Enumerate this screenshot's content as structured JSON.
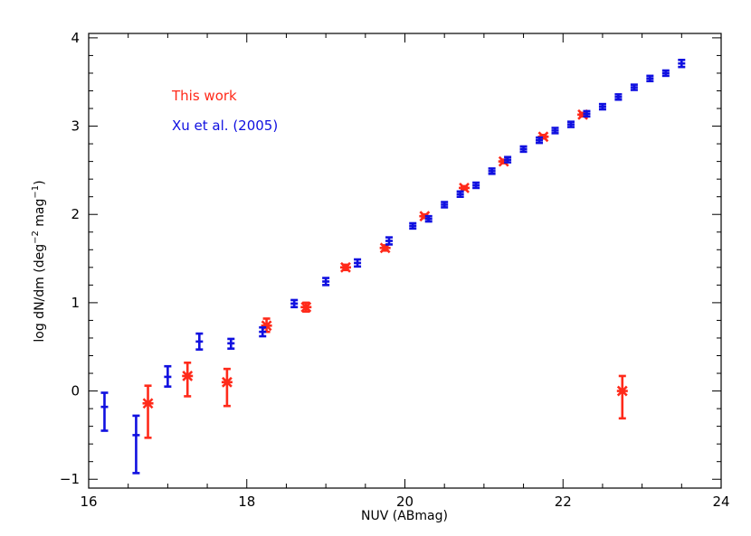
{
  "chart_data": {
    "type": "scatter",
    "xlabel": "NUV (ABmag)",
    "ylabel_main": "log dN/dm (deg",
    "ylabel_sup1": "−2",
    "ylabel_mid": " mag",
    "ylabel_sup2": "−1",
    "ylabel_end": ")",
    "xlim": [
      16,
      24
    ],
    "ylim": [
      -1.1,
      4.05
    ],
    "xticks": [
      16,
      18,
      20,
      22,
      24
    ],
    "xtick_labels": [
      "16",
      "18",
      "20",
      "22",
      "24"
    ],
    "yticks": [
      -1,
      0,
      1,
      2,
      3,
      4
    ],
    "ytick_labels": [
      "−1",
      "0",
      "1",
      "2",
      "3",
      "4"
    ],
    "legend": [
      {
        "label": "This work",
        "color": "#ff2a1a"
      },
      {
        "label": "Xu et al. (2005)",
        "color": "#1010e0"
      }
    ],
    "series": [
      {
        "name": "This work",
        "color": "#ff2a1a",
        "marker": "asterisk",
        "points": [
          {
            "x": 16.75,
            "y": -0.14,
            "lo": -0.53,
            "hi": 0.06
          },
          {
            "x": 17.25,
            "y": 0.17,
            "lo": -0.06,
            "hi": 0.32
          },
          {
            "x": 17.75,
            "y": 0.1,
            "lo": -0.17,
            "hi": 0.25
          },
          {
            "x": 18.25,
            "y": 0.74,
            "lo": 0.67,
            "hi": 0.82
          },
          {
            "x": 18.75,
            "y": 0.95,
            "lo": 0.9,
            "hi": 1.0
          },
          {
            "x": 19.25,
            "y": 1.4,
            "lo": 1.37,
            "hi": 1.43
          },
          {
            "x": 19.75,
            "y": 1.62,
            "lo": 1.59,
            "hi": 1.65
          },
          {
            "x": 20.25,
            "y": 1.98,
            "lo": 1.96,
            "hi": 2.0
          },
          {
            "x": 20.75,
            "y": 2.3,
            "lo": 2.28,
            "hi": 2.32
          },
          {
            "x": 21.25,
            "y": 2.6,
            "lo": 2.58,
            "hi": 2.62
          },
          {
            "x": 21.75,
            "y": 2.88,
            "lo": 2.86,
            "hi": 2.9
          },
          {
            "x": 22.25,
            "y": 3.13,
            "lo": 3.11,
            "hi": 3.15
          },
          {
            "x": 22.75,
            "y": 0.0,
            "lo": -0.31,
            "hi": 0.17
          }
        ]
      },
      {
        "name": "Xu et al. (2005)",
        "color": "#1010e0",
        "marker": "errorbar",
        "points": [
          {
            "x": 16.2,
            "y": -0.18,
            "lo": -0.45,
            "hi": -0.02
          },
          {
            "x": 16.6,
            "y": -0.5,
            "lo": -0.93,
            "hi": -0.28
          },
          {
            "x": 17.0,
            "y": 0.16,
            "lo": 0.05,
            "hi": 0.28
          },
          {
            "x": 17.4,
            "y": 0.56,
            "lo": 0.47,
            "hi": 0.65
          },
          {
            "x": 17.8,
            "y": 0.54,
            "lo": 0.48,
            "hi": 0.59
          },
          {
            "x": 18.2,
            "y": 0.67,
            "lo": 0.62,
            "hi": 0.72
          },
          {
            "x": 18.6,
            "y": 0.99,
            "lo": 0.95,
            "hi": 1.03
          },
          {
            "x": 19.0,
            "y": 1.24,
            "lo": 1.2,
            "hi": 1.28
          },
          {
            "x": 19.4,
            "y": 1.45,
            "lo": 1.41,
            "hi": 1.49
          },
          {
            "x": 19.8,
            "y": 1.7,
            "lo": 1.66,
            "hi": 1.74
          },
          {
            "x": 20.1,
            "y": 1.87,
            "lo": 1.84,
            "hi": 1.9
          },
          {
            "x": 20.3,
            "y": 1.95,
            "lo": 1.92,
            "hi": 1.98
          },
          {
            "x": 20.5,
            "y": 2.11,
            "lo": 2.08,
            "hi": 2.14
          },
          {
            "x": 20.7,
            "y": 2.23,
            "lo": 2.2,
            "hi": 2.26
          },
          {
            "x": 20.9,
            "y": 2.33,
            "lo": 2.3,
            "hi": 2.36
          },
          {
            "x": 21.1,
            "y": 2.49,
            "lo": 2.46,
            "hi": 2.52
          },
          {
            "x": 21.3,
            "y": 2.62,
            "lo": 2.59,
            "hi": 2.65
          },
          {
            "x": 21.5,
            "y": 2.74,
            "lo": 2.71,
            "hi": 2.77
          },
          {
            "x": 21.7,
            "y": 2.84,
            "lo": 2.81,
            "hi": 2.87
          },
          {
            "x": 21.9,
            "y": 2.95,
            "lo": 2.92,
            "hi": 2.98
          },
          {
            "x": 22.1,
            "y": 3.02,
            "lo": 2.99,
            "hi": 3.05
          },
          {
            "x": 22.3,
            "y": 3.14,
            "lo": 3.11,
            "hi": 3.17
          },
          {
            "x": 22.5,
            "y": 3.22,
            "lo": 3.19,
            "hi": 3.25
          },
          {
            "x": 22.7,
            "y": 3.33,
            "lo": 3.3,
            "hi": 3.36
          },
          {
            "x": 22.9,
            "y": 3.44,
            "lo": 3.41,
            "hi": 3.47
          },
          {
            "x": 23.1,
            "y": 3.54,
            "lo": 3.51,
            "hi": 3.57
          },
          {
            "x": 23.3,
            "y": 3.6,
            "lo": 3.57,
            "hi": 3.63
          },
          {
            "x": 23.5,
            "y": 3.71,
            "lo": 3.67,
            "hi": 3.75
          }
        ]
      }
    ]
  }
}
